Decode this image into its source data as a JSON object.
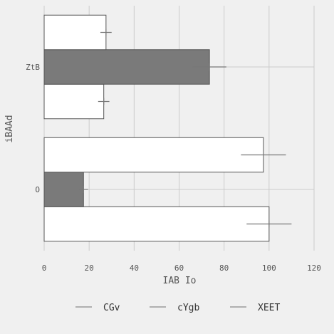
{
  "chart_data": {
    "type": "bar",
    "orientation": "horizontal",
    "categories": [
      "O",
      "ZtB"
    ],
    "xlabel": "IAB Io",
    "ylabel": "iBAAd",
    "xlim": [
      0,
      120
    ],
    "xticks": [
      0,
      20,
      40,
      60,
      80,
      100,
      120
    ],
    "grid": true,
    "legend_position": "bottom",
    "series": [
      {
        "name": "CGv",
        "color": "#ffffff",
        "values": [
          100,
          26.5
        ],
        "errors": [
          10,
          2.5
        ]
      },
      {
        "name": "cYgb",
        "color": "#7a7a7a",
        "values": [
          17.5,
          73.5
        ],
        "errors": [
          2,
          7.5
        ]
      },
      {
        "name": "XEET",
        "color": "#ffffff",
        "values": [
          97.5,
          27.5
        ],
        "errors": [
          10,
          2.5
        ]
      }
    ]
  }
}
